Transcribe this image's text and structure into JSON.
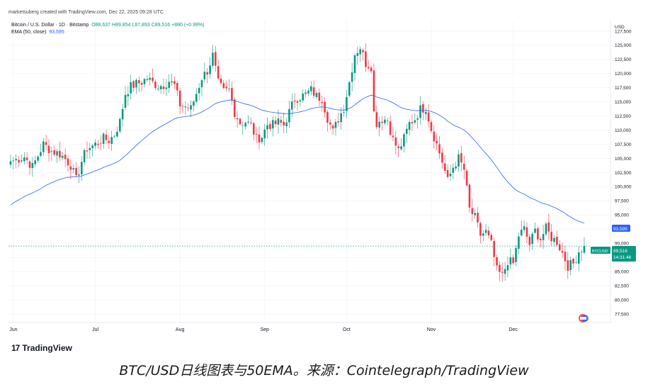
{
  "header": {
    "watermark": "marketsuberg created with TradingView.com, Dec 22, 2025 09:28 UTC",
    "symbol": "Bitcoin / U.S. Dollar · 1D · Bitstamp",
    "ohlc_o": "O88,637",
    "ohlc_h": "H89,854",
    "ohlc_l": "L87,893",
    "ohlc_c": "C89,516",
    "ohlc_change": "+880 (+0.99%)",
    "ema_label": "EMA (50, close)",
    "ema_value": "93,595"
  },
  "price_axis": {
    "currency": "USD",
    "price_tag": "89,516",
    "price_tag_symbol": "BTCUSD",
    "countdown": "14:31:46",
    "ema_tag": "93,595"
  },
  "logo": {
    "text": "TradingView",
    "mark": "17"
  },
  "caption": "BTC/USD日线图表与50EMA。来源：Cointelegraph/TradingView",
  "colors": {
    "up": "#089981",
    "down": "#f23645",
    "ema": "#2962ff",
    "grid": "#f0f3fa",
    "last_price_line": "#089981"
  },
  "chart_data": {
    "type": "candlestick",
    "title": "Bitcoin / U.S. Dollar · 1D · Bitstamp",
    "ylim": [
      76000,
      129500
    ],
    "yticks": [
      77500,
      80000,
      82500,
      85000,
      87500,
      90000,
      92500,
      95000,
      97500,
      100000,
      102500,
      105000,
      107500,
      110000,
      112500,
      115000,
      117500,
      120000,
      122500,
      125000,
      127500
    ],
    "xticks": [
      {
        "label": "Jun",
        "index": 1
      },
      {
        "label": "Jul",
        "index": 31
      },
      {
        "label": "Aug",
        "index": 62
      },
      {
        "label": "Sep",
        "index": 93
      },
      {
        "label": "Oct",
        "index": 123
      },
      {
        "label": "Nov",
        "index": 154
      },
      {
        "label": "Dec",
        "index": 184
      }
    ],
    "start_date": "2025-05-31",
    "close_anchors": [
      [
        0,
        104500
      ],
      [
        2,
        104800
      ],
      [
        5,
        105300
      ],
      [
        8,
        103500
      ],
      [
        10,
        105500
      ],
      [
        12,
        107500
      ],
      [
        15,
        106300
      ],
      [
        18,
        105800
      ],
      [
        20,
        104900
      ],
      [
        22,
        103800
      ],
      [
        24,
        101200
      ],
      [
        26,
        104500
      ],
      [
        28,
        106800
      ],
      [
        30,
        107200
      ],
      [
        32,
        107800
      ],
      [
        34,
        108500
      ],
      [
        36,
        108200
      ],
      [
        38,
        109200
      ],
      [
        40,
        111500
      ],
      [
        42,
        116500
      ],
      [
        44,
        117700
      ],
      [
        46,
        118200
      ],
      [
        48,
        118500
      ],
      [
        50,
        119200
      ],
      [
        52,
        118400
      ],
      [
        54,
        117800
      ],
      [
        56,
        118000
      ],
      [
        58,
        118700
      ],
      [
        60,
        117900
      ],
      [
        62,
        114500
      ],
      [
        64,
        114200
      ],
      [
        66,
        113800
      ],
      [
        68,
        116500
      ],
      [
        70,
        119300
      ],
      [
        72,
        120500
      ],
      [
        74,
        123200
      ],
      [
        76,
        118300
      ],
      [
        78,
        116800
      ],
      [
        80,
        117100
      ],
      [
        82,
        113200
      ],
      [
        84,
        111300
      ],
      [
        86,
        111500
      ],
      [
        88,
        110800
      ],
      [
        90,
        108500
      ],
      [
        92,
        108900
      ],
      [
        94,
        111000
      ],
      [
        96,
        110900
      ],
      [
        98,
        111400
      ],
      [
        100,
        110900
      ],
      [
        102,
        113200
      ],
      [
        104,
        115500
      ],
      [
        106,
        115900
      ],
      [
        108,
        116300
      ],
      [
        110,
        117100
      ],
      [
        112,
        116000
      ],
      [
        114,
        115600
      ],
      [
        116,
        112200
      ],
      [
        118,
        109700
      ],
      [
        120,
        112000
      ],
      [
        122,
        114000
      ],
      [
        124,
        118500
      ],
      [
        126,
        123500
      ],
      [
        128,
        124700
      ],
      [
        130,
        121800
      ],
      [
        132,
        121300
      ],
      [
        133,
        113100
      ],
      [
        134,
        111300
      ],
      [
        136,
        112000
      ],
      [
        138,
        111800
      ],
      [
        140,
        108300
      ],
      [
        142,
        106400
      ],
      [
        144,
        108500
      ],
      [
        146,
        111200
      ],
      [
        148,
        112000
      ],
      [
        150,
        113700
      ],
      [
        152,
        114000
      ],
      [
        154,
        110200
      ],
      [
        156,
        107500
      ],
      [
        158,
        104500
      ],
      [
        160,
        101000
      ],
      [
        162,
        103500
      ],
      [
        164,
        105000
      ],
      [
        166,
        103000
      ],
      [
        168,
        96000
      ],
      [
        170,
        94500
      ],
      [
        172,
        91500
      ],
      [
        174,
        92000
      ],
      [
        176,
        89800
      ],
      [
        178,
        85200
      ],
      [
        180,
        84200
      ],
      [
        182,
        86900
      ],
      [
        184,
        86400
      ],
      [
        186,
        91400
      ],
      [
        188,
        92500
      ],
      [
        190,
        89800
      ],
      [
        192,
        92200
      ],
      [
        194,
        90800
      ],
      [
        196,
        92600
      ],
      [
        198,
        91000
      ],
      [
        200,
        90300
      ],
      [
        202,
        88300
      ],
      [
        204,
        86000
      ],
      [
        206,
        86400
      ],
      [
        208,
        88600
      ],
      [
        210,
        89516
      ]
    ],
    "ema_period": 50,
    "last_close": 89516,
    "ema_last": 93595
  }
}
